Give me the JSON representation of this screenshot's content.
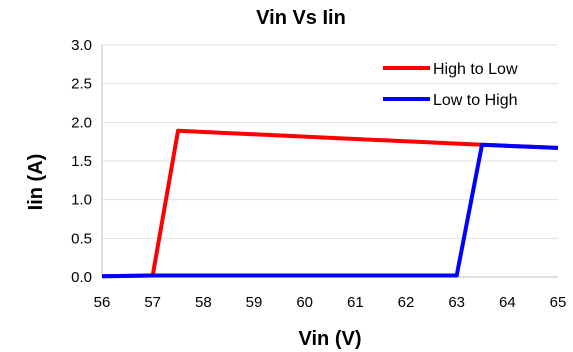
{
  "chart_data": {
    "type": "line",
    "title": "Vin Vs Iin",
    "xlabel": "Vin (V)",
    "ylabel": "Iin (A)",
    "xlim": [
      56,
      65
    ],
    "ylim": [
      0,
      3
    ],
    "xticks": [
      "56",
      "57",
      "58",
      "59",
      "60",
      "61",
      "62",
      "63",
      "64",
      "65"
    ],
    "yticks": [
      "0.0",
      "0.5",
      "1.0",
      "1.5",
      "2.0",
      "2.5",
      "3.0"
    ],
    "grid": true,
    "legend_position": "top-right",
    "series": [
      {
        "name": "High to Low",
        "color": "#ff0000",
        "x": [
          65,
          63.5,
          57.5,
          57.0,
          56
        ],
        "y": [
          1.67,
          1.71,
          1.89,
          0.02,
          0.01
        ]
      },
      {
        "name": "Low to High",
        "color": "#0000ff",
        "x": [
          56,
          57.0,
          63.0,
          63.5,
          65
        ],
        "y": [
          0.01,
          0.02,
          0.02,
          1.71,
          1.67
        ]
      }
    ]
  }
}
